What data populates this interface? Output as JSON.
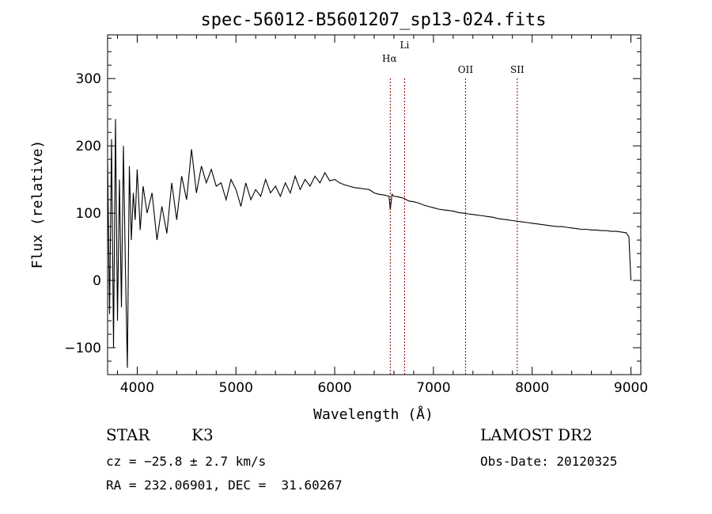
{
  "chart_data": {
    "type": "line",
    "title": "spec-56012-B5601207_sp13-024.fits",
    "xlabel": "Wavelength (Å)",
    "ylabel": "Flux (relative)",
    "xlim": [
      3700,
      9100
    ],
    "ylim": [
      -140,
      365
    ],
    "x_ticks": [
      4000,
      5000,
      6000,
      7000,
      8000,
      9000
    ],
    "y_ticks": [
      -100,
      0,
      100,
      200,
      300
    ],
    "grid": false,
    "line_color": "#000000",
    "marker_color": "#8b0000",
    "spectral_lines": [
      {
        "name": "Hα",
        "wavelength": 6563
      },
      {
        "name": "Li",
        "wavelength": 6708
      },
      {
        "name": "OII",
        "wavelength": 7325
      },
      {
        "name": "SII",
        "wavelength": 7849
      }
    ],
    "series": [
      {
        "x": [
          3700,
          3720,
          3740,
          3760,
          3780,
          3800,
          3820,
          3840,
          3860,
          3880,
          3900,
          3920,
          3940,
          3960,
          3980,
          4000,
          4030,
          4060,
          4100,
          4150,
          4200,
          4250,
          4300,
          4350,
          4400,
          4450,
          4500,
          4550,
          4600,
          4650,
          4700,
          4750,
          4800,
          4850,
          4900,
          4950,
          5000,
          5050,
          5100,
          5150,
          5200,
          5250,
          5300,
          5350,
          5400,
          5450,
          5500,
          5550,
          5600,
          5650,
          5700,
          5750,
          5800,
          5850,
          5900,
          5950,
          6000,
          6050,
          6100,
          6150,
          6200,
          6250,
          6300,
          6350,
          6400,
          6450,
          6500,
          6550,
          6563,
          6580,
          6600,
          6650,
          6700,
          6750,
          6800,
          6850,
          6900,
          6950,
          7000,
          7050,
          7100,
          7150,
          7200,
          7250,
          7300,
          7350,
          7400,
          7450,
          7500,
          7550,
          7600,
          7650,
          7700,
          7750,
          7800,
          7850,
          7900,
          7950,
          8000,
          8050,
          8100,
          8150,
          8200,
          8250,
          8300,
          8350,
          8400,
          8450,
          8500,
          8550,
          8600,
          8650,
          8700,
          8750,
          8800,
          8850,
          8900,
          8950,
          8980,
          9000
        ],
        "y": [
          180,
          -50,
          210,
          -100,
          240,
          -60,
          150,
          -40,
          200,
          20,
          -130,
          170,
          60,
          130,
          90,
          165,
          75,
          140,
          100,
          130,
          60,
          110,
          70,
          145,
          90,
          155,
          120,
          195,
          130,
          170,
          145,
          165,
          140,
          145,
          120,
          150,
          135,
          110,
          145,
          120,
          135,
          125,
          150,
          130,
          140,
          125,
          145,
          130,
          155,
          135,
          150,
          140,
          155,
          145,
          160,
          148,
          150,
          145,
          142,
          140,
          138,
          137,
          136,
          135,
          130,
          128,
          127,
          125,
          105,
          128,
          125,
          124,
          122,
          118,
          117,
          115,
          112,
          110,
          108,
          106,
          105,
          104,
          103,
          101,
          100,
          99,
          98,
          97,
          96,
          95,
          94,
          92,
          91,
          90,
          89,
          88,
          87,
          86,
          85,
          84,
          83,
          82,
          81,
          80,
          80,
          79,
          78,
          77,
          76,
          76,
          75,
          75,
          74,
          74,
          73,
          73,
          72,
          71,
          65,
          0
        ]
      }
    ]
  },
  "info": {
    "object_type": "STAR",
    "subclass": "K3",
    "cz": "cz = −25.8 ± 2.7 km/s",
    "coords": "RA = 232.06901, DEC =  31.60267",
    "survey": "LAMOST DR2",
    "obs_date": "Obs-Date: 20120325"
  }
}
